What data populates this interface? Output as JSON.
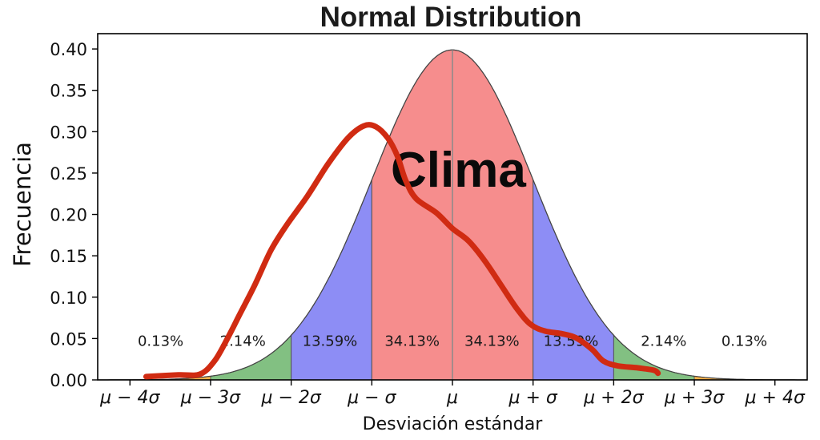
{
  "chart_data": {
    "type": "area",
    "title": "Normal Distribution",
    "xlabel": "Desviación estándar",
    "ylabel": "Frecuencia",
    "xlim": [
      -4.4,
      4.4
    ],
    "ylim": [
      0,
      0.4185
    ],
    "grid": false,
    "normal_peak": 0.3989,
    "pct_label_v": 0.047,
    "x_ticks": [
      {
        "t": -4,
        "label": "μ − 4σ"
      },
      {
        "t": -3,
        "label": "μ − 3σ"
      },
      {
        "t": -2,
        "label": "μ − 2σ"
      },
      {
        "t": -1,
        "label": "μ − σ"
      },
      {
        "t": 0,
        "label": "μ"
      },
      {
        "t": 1,
        "label": "μ + σ"
      },
      {
        "t": 2,
        "label": "μ + 2σ"
      },
      {
        "t": 3,
        "label": "μ + 3σ"
      },
      {
        "t": 4,
        "label": "μ + 4σ"
      }
    ],
    "y_ticks": [
      {
        "v": 0.0,
        "label": "0.00"
      },
      {
        "v": 0.05,
        "label": "0.05"
      },
      {
        "v": 0.1,
        "label": "0.10"
      },
      {
        "v": 0.15,
        "label": "0.15"
      },
      {
        "v": 0.2,
        "label": "0.20"
      },
      {
        "v": 0.25,
        "label": "0.25"
      },
      {
        "v": 0.3,
        "label": "0.30"
      },
      {
        "v": 0.35,
        "label": "0.35"
      },
      {
        "v": 0.4,
        "label": "0.40"
      }
    ],
    "regions": [
      {
        "from": -4.4,
        "to": -3,
        "color": "#ffb347",
        "label": "0.13%",
        "label_t": -3.62
      },
      {
        "from": -3,
        "to": -2,
        "color": "#82c082",
        "label": "2.14%",
        "label_t": -2.6
      },
      {
        "from": -2,
        "to": -1,
        "color": "#8d8df5",
        "label": "13.59%",
        "label_t": -1.52
      },
      {
        "from": -1,
        "to": 0,
        "color": "#f68d8d",
        "label": "34.13%",
        "label_t": -0.5
      },
      {
        "from": 0,
        "to": 1,
        "color": "#f68d8d",
        "label": "34.13%",
        "label_t": 0.49
      },
      {
        "from": 1,
        "to": 2,
        "color": "#8d8df5",
        "label": "13.59%",
        "label_t": 1.47
      },
      {
        "from": 2,
        "to": 3,
        "color": "#82c082",
        "label": "2.14%",
        "label_t": 2.62
      },
      {
        "from": 3,
        "to": 4.4,
        "color": "#ffb347",
        "label": "0.13%",
        "label_t": 3.62
      }
    ],
    "mean_line_t": 0,
    "annotation": {
      "text": "Clima"
    },
    "overlay_series": {
      "name": "Clima",
      "color": "#d02b12",
      "width": 7,
      "points": [
        [
          -3.8,
          0.004
        ],
        [
          -3.4,
          0.006
        ],
        [
          -3.13,
          0.007
        ],
        [
          -2.95,
          0.023
        ],
        [
          -2.78,
          0.052
        ],
        [
          -2.65,
          0.077
        ],
        [
          -2.45,
          0.115
        ],
        [
          -2.25,
          0.157
        ],
        [
          -2.05,
          0.188
        ],
        [
          -1.8,
          0.222
        ],
        [
          -1.55,
          0.26
        ],
        [
          -1.3,
          0.292
        ],
        [
          -1.1,
          0.307
        ],
        [
          -0.95,
          0.306
        ],
        [
          -0.8,
          0.292
        ],
        [
          -0.68,
          0.27
        ],
        [
          -0.58,
          0.241
        ],
        [
          -0.45,
          0.219
        ],
        [
          -0.2,
          0.202
        ],
        [
          0.0,
          0.183
        ],
        [
          0.2,
          0.168
        ],
        [
          0.4,
          0.144
        ],
        [
          0.6,
          0.115
        ],
        [
          0.8,
          0.086
        ],
        [
          0.97,
          0.067
        ],
        [
          1.15,
          0.059
        ],
        [
          1.35,
          0.056
        ],
        [
          1.53,
          0.051
        ],
        [
          1.73,
          0.037
        ],
        [
          1.87,
          0.023
        ],
        [
          2.05,
          0.017
        ],
        [
          2.3,
          0.0145
        ],
        [
          2.5,
          0.0116
        ],
        [
          2.55,
          0.008
        ]
      ]
    },
    "colors": {
      "outline": "#444444",
      "region_edge": "#555555",
      "mean_line": "#8a8a8a",
      "axis": "#000000",
      "overlay_red": "#d02b12"
    }
  }
}
